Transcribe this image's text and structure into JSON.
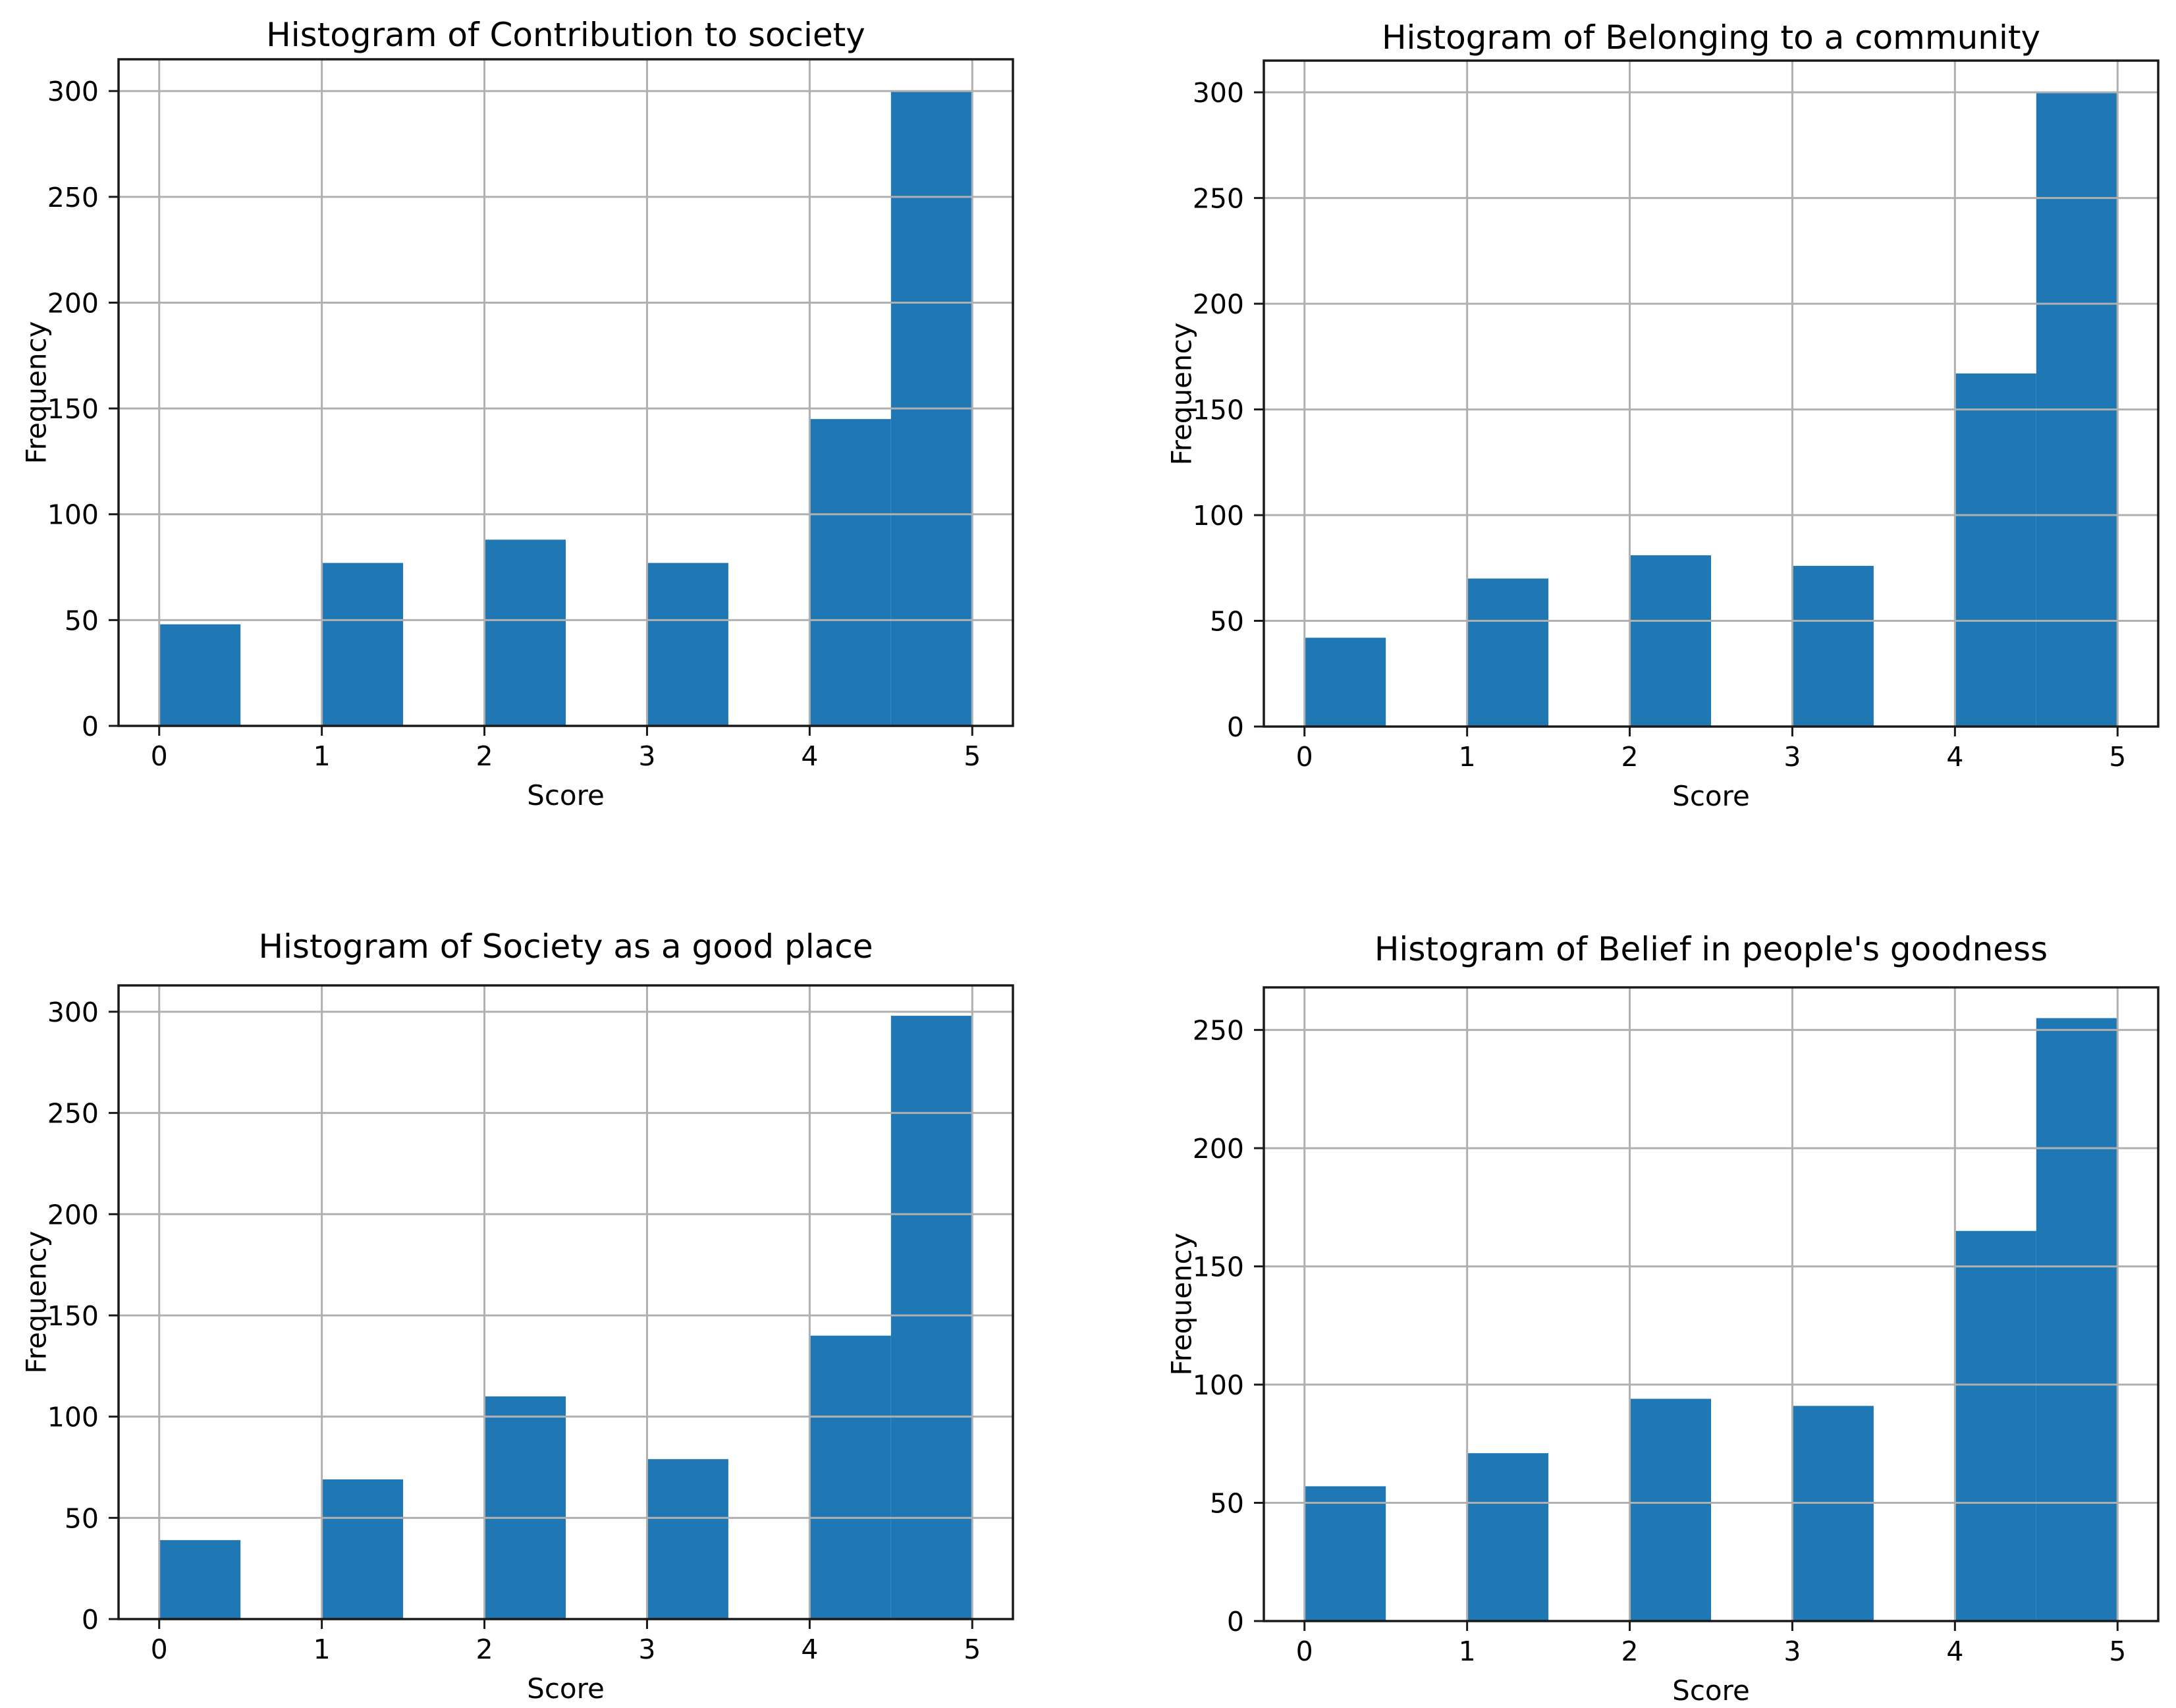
{
  "figure": {
    "background": "#ffffff"
  },
  "style": {
    "bar_color": "#1f77b4",
    "grid_color": "#b0b0b0",
    "spine_color": "#1a1a1a",
    "text_color": "#000000"
  },
  "chart_data": [
    {
      "type": "bar",
      "subtype": "histogram",
      "title": "Histogram of Contribution to society",
      "xlabel": "Score",
      "ylabel": "Frequency",
      "bins": [
        {
          "x0": 0,
          "x1": 0.5,
          "count": 48
        },
        {
          "x0": 1,
          "x1": 1.5,
          "count": 77
        },
        {
          "x0": 2,
          "x1": 2.5,
          "count": 88
        },
        {
          "x0": 3,
          "x1": 3.5,
          "count": 77
        },
        {
          "x0": 4,
          "x1": 4.5,
          "count": 145
        },
        {
          "x0": 4.5,
          "x1": 5,
          "count": 300
        }
      ],
      "xticks": [
        0,
        1,
        2,
        3,
        4,
        5
      ],
      "yticks": [
        0,
        50,
        100,
        150,
        200,
        250,
        300
      ],
      "xlim": [
        -0.25,
        5.25
      ],
      "ylim": [
        0,
        315
      ],
      "grid": true,
      "legend": null
    },
    {
      "type": "bar",
      "subtype": "histogram",
      "title": "Histogram of Belonging to a community",
      "xlabel": "Score",
      "ylabel": "Frequency",
      "bins": [
        {
          "x0": 0,
          "x1": 0.5,
          "count": 42
        },
        {
          "x0": 1,
          "x1": 1.5,
          "count": 70
        },
        {
          "x0": 2,
          "x1": 2.5,
          "count": 81
        },
        {
          "x0": 3,
          "x1": 3.5,
          "count": 76
        },
        {
          "x0": 4,
          "x1": 4.5,
          "count": 167
        },
        {
          "x0": 4.5,
          "x1": 5,
          "count": 300
        }
      ],
      "xticks": [
        0,
        1,
        2,
        3,
        4,
        5
      ],
      "yticks": [
        0,
        50,
        100,
        150,
        200,
        250,
        300
      ],
      "xlim": [
        -0.25,
        5.25
      ],
      "ylim": [
        0,
        315
      ],
      "grid": true,
      "legend": null
    },
    {
      "type": "bar",
      "subtype": "histogram",
      "title": "Histogram of Society as a good place",
      "xlabel": "Score",
      "ylabel": "Frequency",
      "bins": [
        {
          "x0": 0,
          "x1": 0.5,
          "count": 39
        },
        {
          "x0": 1,
          "x1": 1.5,
          "count": 69
        },
        {
          "x0": 2,
          "x1": 2.5,
          "count": 110
        },
        {
          "x0": 3,
          "x1": 3.5,
          "count": 79
        },
        {
          "x0": 4,
          "x1": 4.5,
          "count": 140
        },
        {
          "x0": 4.5,
          "x1": 5,
          "count": 298
        }
      ],
      "xticks": [
        0,
        1,
        2,
        3,
        4,
        5
      ],
      "yticks": [
        0,
        50,
        100,
        150,
        200,
        250,
        300
      ],
      "xlim": [
        -0.25,
        5.25
      ],
      "ylim": [
        0,
        313
      ],
      "grid": true,
      "legend": null
    },
    {
      "type": "bar",
      "subtype": "histogram",
      "title": "Histogram of Belief in people's goodness",
      "xlabel": "Score",
      "ylabel": "Frequency",
      "bins": [
        {
          "x0": 0,
          "x1": 0.5,
          "count": 57
        },
        {
          "x0": 1,
          "x1": 1.5,
          "count": 71
        },
        {
          "x0": 2,
          "x1": 2.5,
          "count": 94
        },
        {
          "x0": 3,
          "x1": 3.5,
          "count": 91
        },
        {
          "x0": 4,
          "x1": 4.5,
          "count": 165
        },
        {
          "x0": 4.5,
          "x1": 5,
          "count": 255
        }
      ],
      "xticks": [
        0,
        1,
        2,
        3,
        4,
        5
      ],
      "yticks": [
        0,
        50,
        100,
        150,
        200,
        250
      ],
      "xlim": [
        -0.25,
        5.25
      ],
      "ylim": [
        0,
        268
      ],
      "grid": true,
      "legend": null
    }
  ]
}
